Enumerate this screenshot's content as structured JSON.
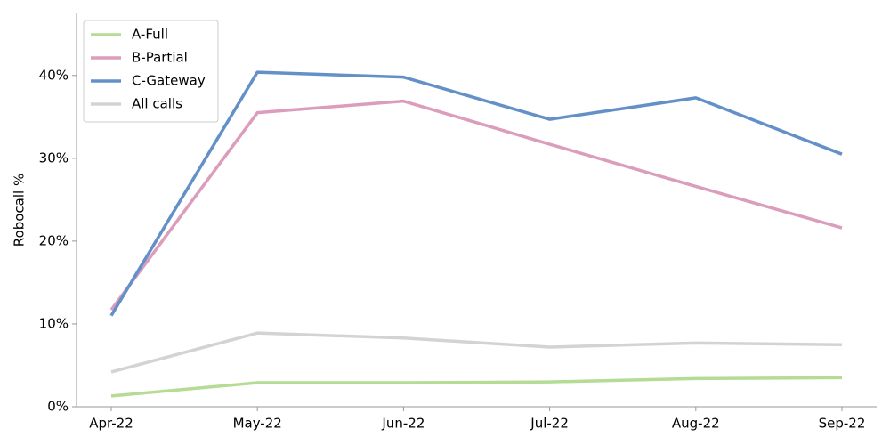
{
  "chart_data": {
    "type": "line",
    "y_label": "Robocall %",
    "categories": [
      "Apr-22",
      "May-22",
      "Jun-22",
      "Jul-22",
      "Aug-22",
      "Sep-22"
    ],
    "series": [
      {
        "name": "A-Full",
        "color": "#b5dc95",
        "values": [
          1.3,
          2.9,
          2.9,
          3.0,
          3.4,
          3.5
        ]
      },
      {
        "name": "B-Partial",
        "color": "#db9dbb",
        "values": [
          11.7,
          35.5,
          36.9,
          31.7,
          26.6,
          21.6
        ]
      },
      {
        "name": "C-Gateway",
        "color": "#6490c8",
        "values": [
          11.0,
          40.4,
          39.8,
          34.7,
          37.3,
          30.5
        ]
      },
      {
        "name": "All calls",
        "color": "#d3d3d3",
        "values": [
          4.2,
          8.9,
          8.3,
          7.2,
          7.7,
          7.5
        ]
      }
    ],
    "ylim": [
      0,
      47.5
    ],
    "yticks": [
      {
        "value": 0,
        "label": "0%"
      },
      {
        "value": 10,
        "label": "10%"
      },
      {
        "value": 20,
        "label": "20%"
      },
      {
        "value": 30,
        "label": "30%"
      },
      {
        "value": 40,
        "label": "40%"
      }
    ],
    "grid": false,
    "legend": "upper-left"
  }
}
